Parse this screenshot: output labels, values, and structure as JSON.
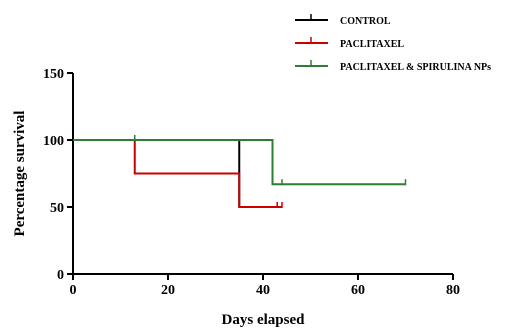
{
  "chart_data": {
    "type": "line",
    "title": "",
    "xlabel": "Days elapsed",
    "ylabel": "Percentage survival",
    "xlim": [
      0,
      80
    ],
    "ylim": [
      0,
      150
    ],
    "x_ticks": [
      "0",
      "20",
      "40",
      "60",
      "80"
    ],
    "y_ticks": [
      "0",
      "50",
      "100",
      "150"
    ],
    "x_tick_values": [
      0,
      20,
      40,
      60,
      80
    ],
    "y_tick_values": [
      0,
      50,
      100,
      150
    ],
    "grid": false,
    "legend_position": "top-right",
    "step": true,
    "series": [
      {
        "name": "CONTROL",
        "color": "#000000",
        "points": [
          [
            0,
            100
          ],
          [
            35,
            100
          ],
          [
            35,
            50
          ]
        ],
        "censored": []
      },
      {
        "name": "PACLITAXEL",
        "color": "#cc0000",
        "points": [
          [
            0,
            100
          ],
          [
            13,
            100
          ],
          [
            13,
            75
          ],
          [
            35,
            75
          ],
          [
            35,
            50
          ],
          [
            44,
            50
          ]
        ],
        "censored": [
          [
            43,
            50
          ],
          [
            44,
            50
          ]
        ]
      },
      {
        "name": "PACLITAXEL & SPIRULINA NPs",
        "color": "#2e7d32",
        "points": [
          [
            0,
            100
          ],
          [
            42,
            100
          ],
          [
            42,
            67
          ],
          [
            70,
            67
          ]
        ],
        "censored": [
          [
            13,
            100
          ],
          [
            44,
            67
          ],
          [
            70,
            67
          ]
        ]
      }
    ]
  }
}
